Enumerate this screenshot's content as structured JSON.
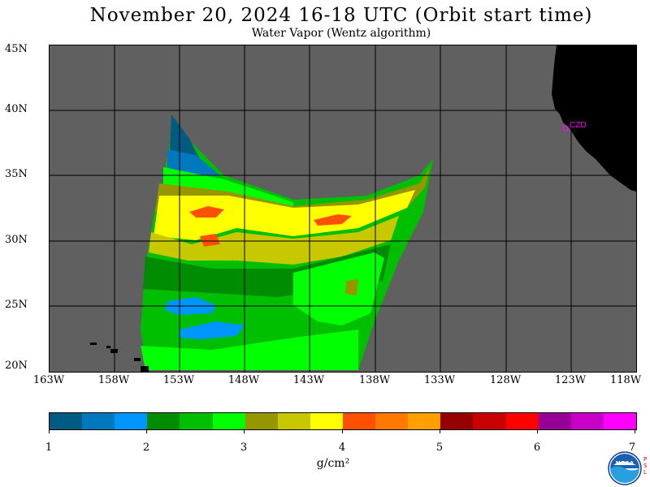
{
  "header": {
    "title": "November 20, 2024  16-18 UTC  (Orbit start time)",
    "subtitle": "Water Vapor (Wentz algorithm)"
  },
  "map": {
    "lat_labels": [
      "45N",
      "40N",
      "35N",
      "30N",
      "25N",
      "20N"
    ],
    "lon_labels": [
      "163W",
      "158W",
      "153W",
      "148W",
      "143W",
      "138W",
      "133W",
      "128W",
      "123W",
      "118W"
    ],
    "station_label": "CZD",
    "colors": {
      "ocean_nodata": "#606060",
      "land": "#000000",
      "grid": "#000000",
      "station": "#ff00ff"
    }
  },
  "colorbar": {
    "tick_labels": [
      "1",
      "2",
      "3",
      "4",
      "5",
      "6",
      "7"
    ],
    "units": "g/cm²",
    "colors": [
      "#005a82",
      "#0078be",
      "#0096ff",
      "#008c00",
      "#00be00",
      "#00ff00",
      "#969600",
      "#c8c800",
      "#ffff00",
      "#ff5000",
      "#ff7800",
      "#ffa000",
      "#960000",
      "#c80000",
      "#ff0000",
      "#960096",
      "#c800c8",
      "#ff00ff"
    ]
  },
  "logo": {
    "text": "NOAA",
    "side_text": "P S L"
  }
}
